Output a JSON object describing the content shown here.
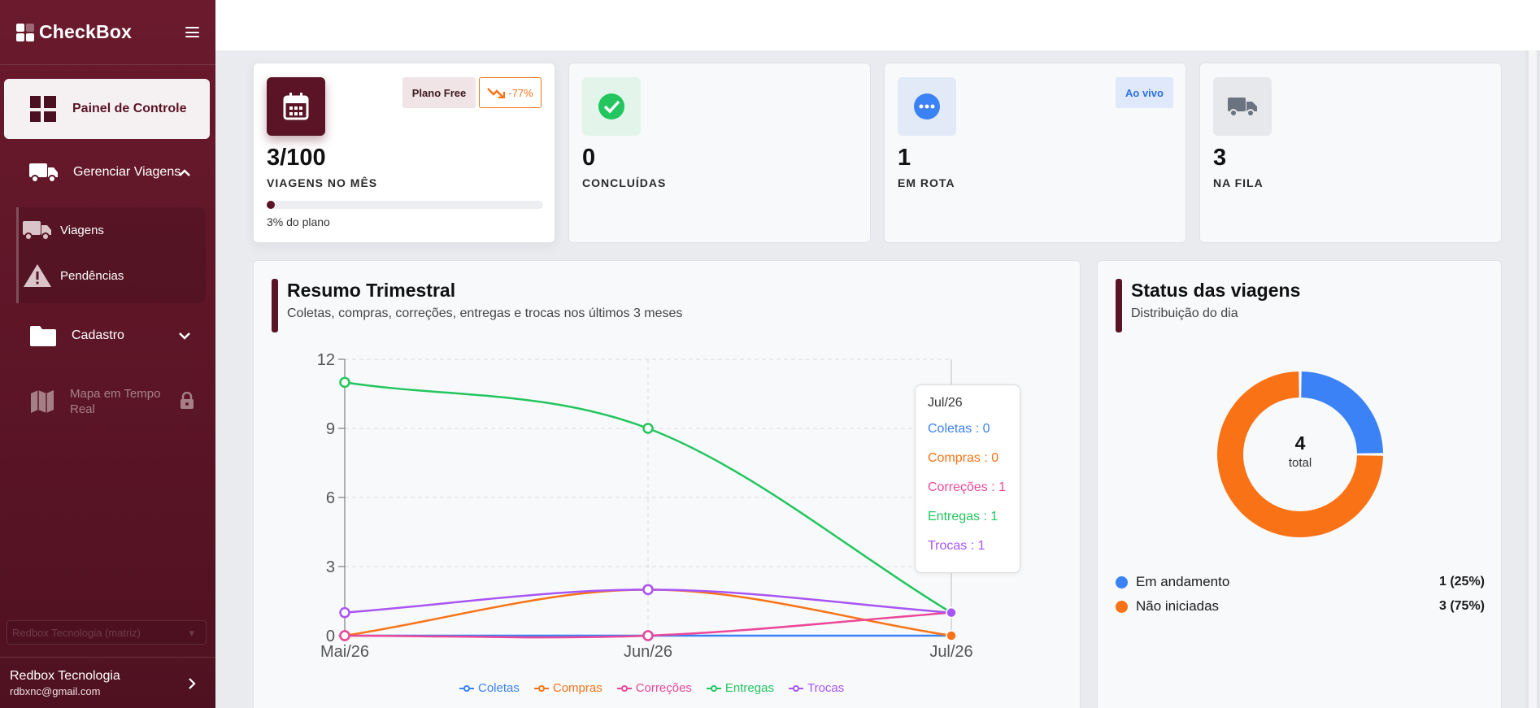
{
  "brand": {
    "name": "CheckBox"
  },
  "sidebar": {
    "active": "Painel de Controle",
    "manage_trips": "Gerenciar Viagens",
    "sub_items": [
      "Viagens",
      "Pendências"
    ],
    "cadastro": "Cadastro",
    "map_line1": "Mapa em Tempo",
    "map_line2": "Real",
    "filial": "Redbox Tecnologia (matriz)",
    "user_name": "Redbox Tecnologia",
    "user_email": "rdbxnc@gmail.com"
  },
  "stats": [
    {
      "value": "3/100",
      "label": "VIAGENS NO MÊS",
      "badge_plan": "Plano Free",
      "badge_trend": "-77%",
      "progress_fraction": 0.03,
      "progress_text": "3% do plano"
    },
    {
      "value": "0",
      "label": "CONCLUÍDAS"
    },
    {
      "value": "1",
      "label": "EM ROTA",
      "badge_live": "Ao vivo"
    },
    {
      "value": "3",
      "label": "NA FILA"
    }
  ],
  "summary": {
    "title": "Resumo Trimestral",
    "subtitle": "Coletas, compras, correções, entregas e trocas nos últimos 3 meses"
  },
  "status": {
    "title": "Status das viagens",
    "subtitle": "Distribuição do dia",
    "total": "4",
    "total_label": "total",
    "rows": [
      {
        "label": "Em andamento",
        "value": "1 (25%)",
        "color": "#3b82f6"
      },
      {
        "label": "Não iniciadas",
        "value": "3 (75%)",
        "color": "#f97316"
      }
    ]
  },
  "tooltip": {
    "title": "Jul/26",
    "rows": [
      "Coletas : 0",
      "Compras : 0",
      "Correções : 1",
      "Entregas : 1",
      "Trocas : 1"
    ]
  },
  "chart_data": [
    {
      "type": "line",
      "categories": [
        "Mai/26",
        "Jun/26",
        "Jul/26"
      ],
      "ylim": [
        0,
        12
      ],
      "yticks": [
        "0",
        "3",
        "6",
        "9",
        "12"
      ],
      "series": [
        {
          "name": "Coletas",
          "color": "#3b82f6",
          "values": [
            0,
            0,
            0
          ]
        },
        {
          "name": "Compras",
          "color": "#f97316",
          "values": [
            0,
            2,
            0
          ]
        },
        {
          "name": "Correções",
          "color": "#ec4899",
          "values": [
            0,
            0,
            1
          ]
        },
        {
          "name": "Entregas",
          "color": "#22c55e",
          "values": [
            11,
            9,
            1
          ]
        },
        {
          "name": "Trocas",
          "color": "#a855f7",
          "values": [
            1,
            2,
            1
          ]
        }
      ]
    },
    {
      "type": "pie",
      "categories": [
        "Em andamento",
        "Não iniciadas"
      ],
      "values": [
        1,
        3
      ],
      "colors": [
        "#3b82f6",
        "#f97316"
      ]
    }
  ]
}
